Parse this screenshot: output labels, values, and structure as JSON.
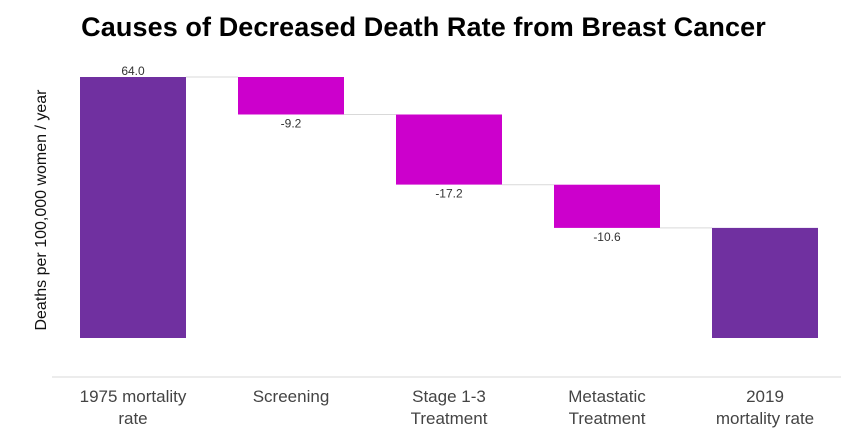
{
  "chart_data": {
    "type": "bar",
    "subtype": "waterfall",
    "title": "Causes of Decreased Death Rate from Breast Cancer",
    "xlabel": "",
    "ylabel": "Deaths per 100,000 women / year",
    "categories": [
      [
        "1975 mortality",
        "rate"
      ],
      [
        "Screening"
      ],
      [
        "Stage 1-3",
        "Treatment"
      ],
      [
        "Metastatic",
        "Treatment"
      ],
      [
        "2019",
        "mortality rate"
      ]
    ],
    "values": [
      64.0,
      -9.2,
      -17.2,
      -10.6,
      27.0
    ],
    "bar_kinds": [
      "total",
      "delta",
      "delta",
      "delta",
      "total"
    ],
    "data_labels": [
      "64.0",
      "-9.2",
      "-17.2",
      "-10.6",
      ""
    ],
    "ylim": [
      0,
      64
    ],
    "grid": false,
    "legend": "none",
    "colors": {
      "total": "#7030a0",
      "delta": "#cc00cc",
      "connector": "#d9d9d9",
      "axis": "#d9d9d9"
    }
  }
}
